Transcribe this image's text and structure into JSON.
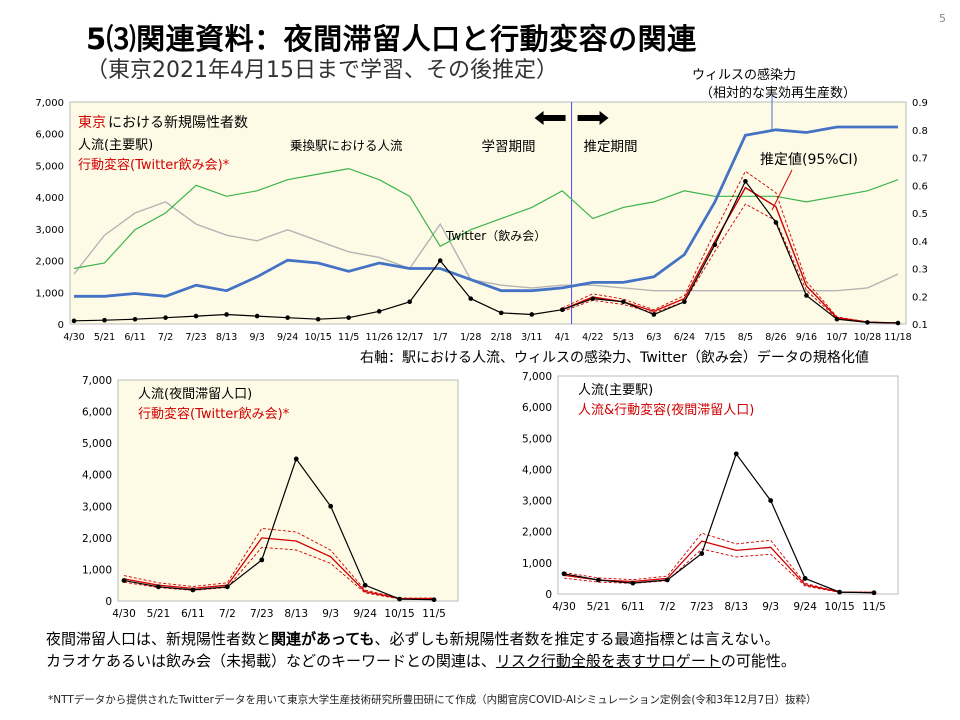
{
  "page": {
    "number": "5",
    "title": "5⑶関連資料：夜間滞留人口と行動変容の関連",
    "subtitle": "（東京2021年4月15日まで学習、その後推定）",
    "virus_label_1": "ウィルスの感染力",
    "virus_label_2": "（相対的な実効再生産数）",
    "right_axis_note": "右軸：駅における人流、ウィルスの感染力、Twitter（飲み会）データの規格化値",
    "conclusion_1": {
      "a": "夜間滞留人口は、新規陽性者数と",
      "b": "関連があっても",
      "c": "、必ずしも新規陽性者数を推定する最適指標とは言えない。"
    },
    "conclusion_2": {
      "a": "カラオケあるいは飲み会（未掲載）などのキーワードとの関連は、",
      "b": "リスク行動全般を表すサロゲート",
      "c": "の可能性。"
    },
    "footnote": "*NTTデータから提供されたTwitterデータを用いて東京大学生産技術研究所豊田研にて作成（内閣官房COVID-AIシミュレーション定例会(令和3年12月7日）抜粋）"
  },
  "colors": {
    "station_flow": "#3cb44b",
    "twitter_gray": "#b4b4b4",
    "virus_blue": "#4472c4",
    "estimate_red": "#d00000",
    "cases_black": "#000000",
    "panel_bg": "#fdfbe6",
    "twitter_light_blue": "#9dc3e6"
  },
  "chart_data": [
    {
      "type": "line",
      "title": "",
      "x_ticks": [
        "4/30",
        "5/21",
        "6/11",
        "7/2",
        "7/23",
        "8/13",
        "9/3",
        "9/24",
        "10/15",
        "11/5",
        "11/26",
        "12/17",
        "1/7",
        "1/28",
        "2/18",
        "3/11",
        "4/1",
        "4/22",
        "5/13",
        "6/3",
        "6/24",
        "7/15",
        "8/5",
        "8/26",
        "9/16",
        "10/7",
        "10/28",
        "11/18"
      ],
      "ylim_left": [
        0,
        7000
      ],
      "yticks_left": [
        "0",
        "1,000",
        "2,000",
        "3,000",
        "4,000",
        "5,000",
        "6,000",
        "7,000"
      ],
      "ylim_right": [
        0.1,
        0.9
      ],
      "yticks_right": [
        "0.1",
        "0.2",
        "0.3",
        "0.4",
        "0.5",
        "0.6",
        "0.7",
        "0.8",
        "0.9"
      ],
      "legend": {
        "cases_red": "東京",
        "cases_rest": "における新規陽性者数",
        "flow": "人流(主要駅)",
        "behavior": "行動変容(Twitter飲み会)*"
      },
      "annotations": {
        "station_flow": "乗換駅における人流",
        "training": "学習期間",
        "estimation": "推定期間",
        "twitter": "Twitter（飲み会）",
        "estimate_ci": "推定値(95%CI)"
      },
      "split_tick_index": 16,
      "series": [
        {
          "name": "乗換駅における人流",
          "axis": "right",
          "color": "#3cb44b",
          "values": [
            0.3,
            0.32,
            0.44,
            0.5,
            0.6,
            0.56,
            0.58,
            0.62,
            0.64,
            0.66,
            0.62,
            0.56,
            0.38,
            0.44,
            0.48,
            0.52,
            0.58,
            0.48,
            0.52,
            0.54,
            0.58,
            0.56,
            0.56,
            0.56,
            0.54,
            0.56,
            0.58,
            0.62
          ]
        },
        {
          "name": "Twitter（飲み会）",
          "axis": "right",
          "color": "#b4b4b4",
          "values": [
            0.28,
            0.42,
            0.5,
            0.54,
            0.46,
            0.42,
            0.4,
            0.44,
            0.4,
            0.36,
            0.34,
            0.3,
            0.46,
            0.26,
            0.24,
            0.23,
            0.24,
            0.24,
            0.23,
            0.22,
            0.22,
            0.22,
            0.22,
            0.22,
            0.22,
            0.22,
            0.23,
            0.28
          ]
        },
        {
          "name": "ウィルスの感染力",
          "axis": "right",
          "color": "#4472c4",
          "values": [
            0.2,
            0.2,
            0.21,
            0.2,
            0.24,
            0.22,
            0.27,
            0.33,
            0.32,
            0.29,
            0.32,
            0.3,
            0.3,
            0.26,
            0.22,
            0.22,
            0.23,
            0.25,
            0.25,
            0.27,
            0.35,
            0.54,
            0.78,
            0.8,
            0.79,
            0.81,
            0.81,
            0.81
          ]
        },
        {
          "name": "新規陽性者数",
          "axis": "left",
          "color": "#000000",
          "values": [
            100,
            120,
            150,
            200,
            250,
            300,
            250,
            200,
            150,
            200,
            400,
            700,
            2000,
            800,
            350,
            300,
            450,
            800,
            700,
            300,
            700,
            2500,
            4500,
            3200,
            900,
            150,
            50,
            30
          ]
        },
        {
          "name": "推定値(95%CI)",
          "axis": "left",
          "color": "#d00000",
          "values": [
            null,
            null,
            null,
            null,
            null,
            null,
            null,
            null,
            null,
            null,
            null,
            null,
            null,
            null,
            null,
            null,
            450,
            850,
            700,
            400,
            800,
            2600,
            4300,
            3700,
            1200,
            200,
            60,
            30
          ]
        }
      ]
    },
    {
      "type": "line",
      "title": "",
      "x_ticks": [
        "4/30",
        "5/21",
        "6/11",
        "7/2",
        "7/23",
        "8/13",
        "9/3",
        "9/24",
        "10/15",
        "11/5"
      ],
      "ylim": [
        0,
        7000
      ],
      "yticks": [
        "0",
        "1,000",
        "2,000",
        "3,000",
        "4,000",
        "5,000",
        "6,000",
        "7,000"
      ],
      "legend": {
        "line1": "人流(夜間滞留人口)",
        "line2": "行動変容(Twitter飲み会)*"
      },
      "series": [
        {
          "name": "新規陽性者数",
          "color": "#000000",
          "values": [
            650,
            450,
            350,
            450,
            1300,
            4500,
            3000,
            500,
            60,
            40
          ]
        },
        {
          "name": "推定値",
          "color": "#d00000",
          "values": [
            700,
            500,
            400,
            500,
            2000,
            1900,
            1400,
            300,
            80,
            80
          ]
        }
      ]
    },
    {
      "type": "line",
      "title": "",
      "x_ticks": [
        "4/30",
        "5/21",
        "6/11",
        "7/2",
        "7/23",
        "8/13",
        "9/3",
        "9/24",
        "10/15",
        "11/5"
      ],
      "ylim": [
        0,
        7000
      ],
      "yticks": [
        "0",
        "1,000",
        "2,000",
        "3,000",
        "4,000",
        "5,000",
        "6,000",
        "7,000"
      ],
      "legend": {
        "line1": "人流(主要駅)",
        "line2": "人流&行動変容(夜間滞留人口)"
      },
      "series": [
        {
          "name": "新規陽性者数",
          "color": "#000000",
          "values": [
            650,
            450,
            350,
            450,
            1300,
            4500,
            3000,
            500,
            60,
            40
          ]
        },
        {
          "name": "推定値",
          "color": "#d00000",
          "values": [
            600,
            450,
            400,
            500,
            1700,
            1400,
            1500,
            300,
            60,
            50
          ]
        }
      ]
    }
  ]
}
